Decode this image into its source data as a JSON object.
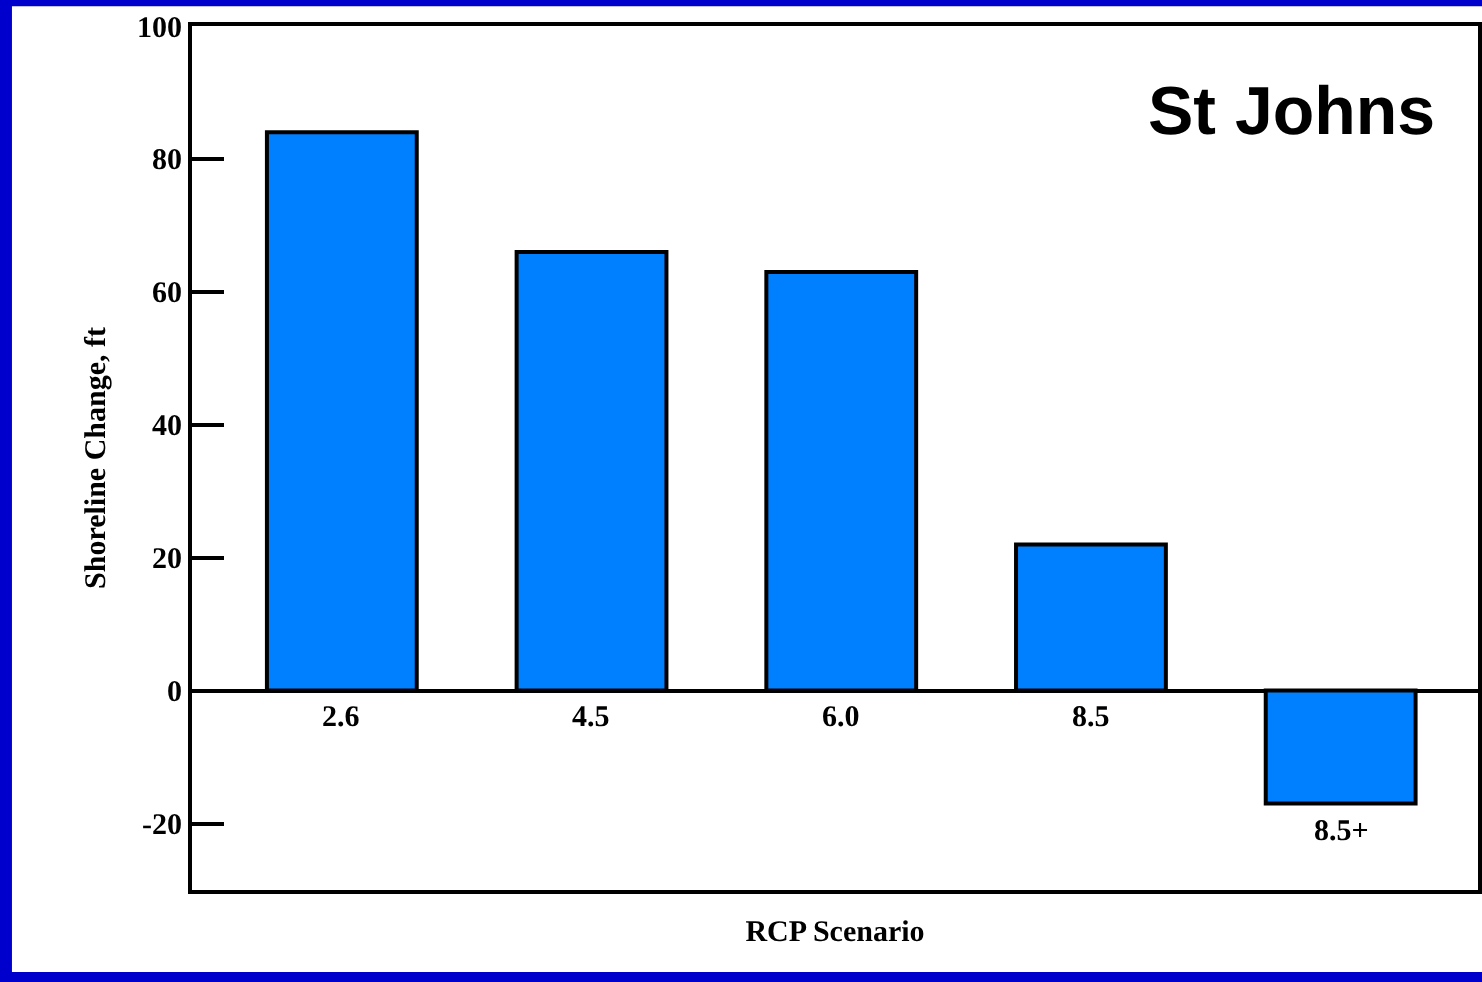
{
  "chart_data": {
    "type": "bar",
    "title": "St Johns",
    "xlabel": "RCP Scenario",
    "ylabel": "Shoreline Change, ft",
    "categories": [
      "2.6",
      "4.5",
      "6.0",
      "8.5",
      "8.5+"
    ],
    "values": [
      84,
      66,
      63,
      22,
      -17
    ],
    "color": "#0080ff",
    "ylim": [
      -30,
      100
    ],
    "yticks": [
      -20,
      0,
      20,
      40,
      60,
      80,
      100
    ]
  }
}
